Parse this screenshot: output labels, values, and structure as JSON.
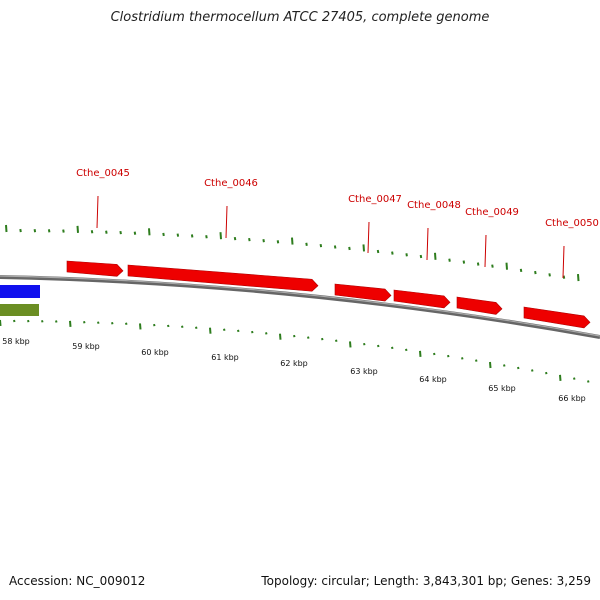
{
  "title": "Clostridium thermocellum ATCC 27405, complete genome",
  "footer": {
    "accession": "Accession: NC_009012",
    "summary": "Topology: circular; Length: 3,843,301 bp; Genes: 3,259"
  },
  "colors": {
    "gene": "#ee0000",
    "gene_label": "#cc0000",
    "backbone": "#888888",
    "tick": "#2e7d1e",
    "track_blue": "#1010ee",
    "track_olive": "#6b8e23"
  },
  "genes": [
    {
      "name": "Cthe_0045"
    },
    {
      "name": "Cthe_0046"
    },
    {
      "name": "Cthe_0047"
    },
    {
      "name": "Cthe_0048"
    },
    {
      "name": "Cthe_0049"
    },
    {
      "name": "Cthe_0050"
    }
  ],
  "kbp_labels": [
    "58 kbp",
    "59 kbp",
    "60 kbp",
    "61 kbp",
    "62 kbp",
    "63 kbp",
    "64 kbp",
    "65 kbp",
    "66 kbp"
  ]
}
